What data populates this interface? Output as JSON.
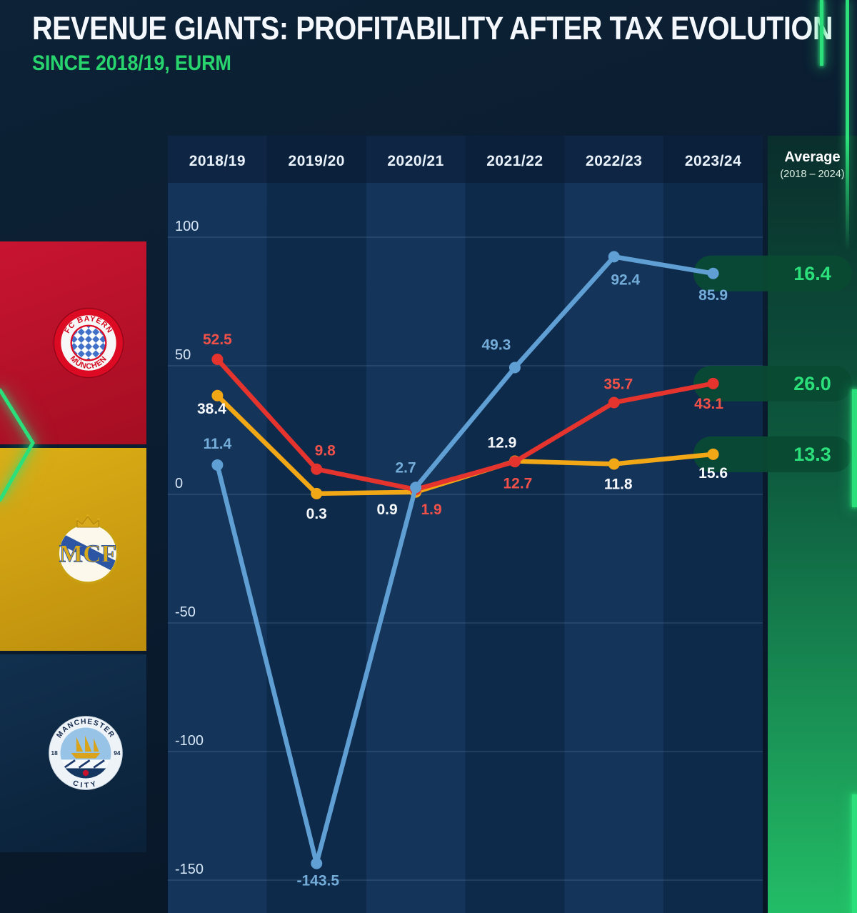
{
  "header": {
    "title": "REVENUE GIANTS: PROFITABILITY AFTER TAX EVOLUTION",
    "subtitle": "SINCE 2018/19, EURM"
  },
  "chart_data": {
    "type": "line",
    "categories": [
      "2018/19",
      "2019/20",
      "2020/21",
      "2021/22",
      "2022/23",
      "2023/24"
    ],
    "yticks": [
      100,
      50,
      0,
      -50,
      -100,
      -150
    ],
    "ylim": [
      -155,
      110
    ],
    "grid": true,
    "legend_position": "left-badges",
    "average_column": {
      "header": "Average",
      "subheader": "(2018 – 2024)"
    },
    "series": [
      {
        "name": "Real Madrid",
        "color": "#f2a716",
        "label_color": "#f7f9fc",
        "values": [
          38.4,
          0.3,
          0.9,
          12.9,
          11.8,
          15.6
        ],
        "average": "13.3",
        "label_offsets": [
          [
            -8,
            18
          ],
          [
            0,
            28
          ],
          [
            -40,
            24
          ],
          [
            -18,
            -26
          ],
          [
            6,
            28
          ],
          [
            0,
            26
          ]
        ]
      },
      {
        "name": "FC Bayern München",
        "color": "#e5332e",
        "label_color": "#f25149",
        "values": [
          52.5,
          9.8,
          1.9,
          12.7,
          35.7,
          43.1
        ],
        "average": "26.0",
        "label_offsets": [
          [
            0,
            -28
          ],
          [
            12,
            -26
          ],
          [
            22,
            28
          ],
          [
            4,
            30
          ],
          [
            6,
            -26
          ],
          [
            -6,
            28
          ]
        ]
      },
      {
        "name": "Manchester City",
        "color": "#5f9fd4",
        "label_color": "#74add9",
        "values": [
          11.4,
          -143.5,
          2.7,
          49.3,
          92.4,
          85.9
        ],
        "average": "16.4",
        "label_offsets": [
          [
            0,
            -30
          ],
          [
            2,
            24
          ],
          [
            -14,
            -28
          ],
          [
            -26,
            -32
          ],
          [
            16,
            32
          ],
          [
            0,
            30
          ]
        ]
      }
    ]
  },
  "badges": {
    "bayern": {
      "club": "FC Bayern München",
      "ring_top": "FC BAYERN",
      "ring_bottom": "MÜNCHEN"
    },
    "real_madrid": {
      "club": "Real Madrid",
      "monogram": "MCF"
    },
    "man_city": {
      "club": "Manchester City",
      "ring_top": "MANCHESTER",
      "ring_bottom": "CITY",
      "year_left": "18",
      "year_right": "94"
    }
  },
  "colors": {
    "accent_green": "#2be07a",
    "bayern_red": "#c81431",
    "madrid_gold": "#dcae16",
    "city_navy": "#11304f",
    "chart_band_light": "#143459",
    "chart_band_dark": "#0e2a4b",
    "average_pill": "#0a4a33"
  }
}
